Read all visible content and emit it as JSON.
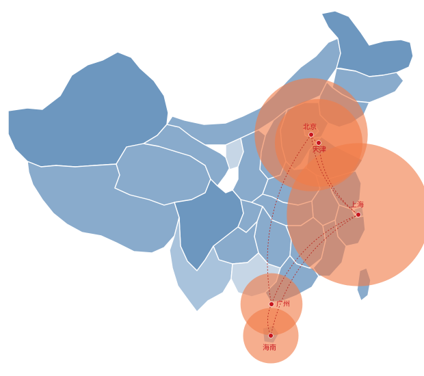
{
  "map": {
    "region": "China",
    "colors": {
      "province_dark": "#6d97bf",
      "province_mid": "#89abcc",
      "province_light": "#a9c3dc",
      "province_pale": "#c6d6e6",
      "border": "#ffffff",
      "bubble": "#f07c48",
      "city": "#c8161e"
    }
  },
  "cities": [
    {
      "key": "beijing",
      "label": "北京",
      "size": 5
    },
    {
      "key": "tianjin",
      "label": "天津",
      "size": 3
    },
    {
      "key": "shanghai",
      "label": "上海",
      "size": 8
    },
    {
      "key": "guangzhou",
      "label": "广州",
      "size": 1.5
    },
    {
      "key": "hainan",
      "label": "海南",
      "size": 1.2
    }
  ],
  "routes": [
    {
      "from": "北京",
      "to": "上海"
    },
    {
      "from": "天津",
      "to": "上海"
    },
    {
      "from": "北京",
      "to": "天津"
    },
    {
      "from": "上海",
      "to": "广州"
    },
    {
      "from": "上海",
      "to": "海南"
    },
    {
      "from": "北京",
      "to": "广州"
    },
    {
      "from": "广州",
      "to": "海南"
    }
  ]
}
